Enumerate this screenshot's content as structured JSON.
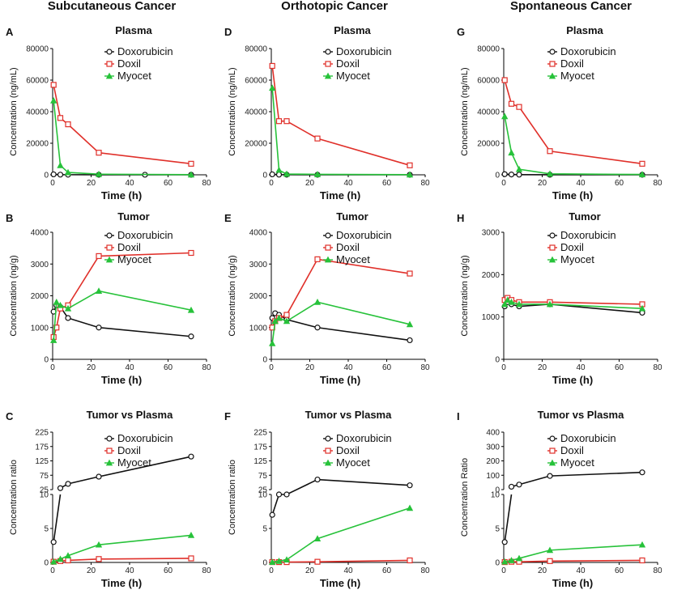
{
  "column_titles": [
    "Subcutaneous Cancer",
    "Orthotopic Cancer",
    "Spontaneous Cancer"
  ],
  "colors": {
    "Doxorubicin": "#111111",
    "Doxil": "#e0302a",
    "Myocet": "#27c23a"
  },
  "chart_data": [
    {
      "id": "A",
      "type": "line",
      "title": "Plasma",
      "xlabel": "Time (h)",
      "ylabel": "Concentration (ng/mL)",
      "xlim": [
        0,
        80
      ],
      "xticks": [
        "0",
        "20",
        "40",
        "60",
        "80"
      ],
      "ylim": [
        0,
        80000
      ],
      "yticks": [
        "0",
        "20000",
        "40000",
        "60000",
        "80000"
      ],
      "legend": [
        "Doxorubicin",
        "Doxil",
        "Myocet"
      ],
      "series": [
        {
          "name": "Doxorubicin",
          "x": [
            0.5,
            4,
            8,
            24,
            48,
            72
          ],
          "y": [
            300,
            100,
            60,
            30,
            20,
            10
          ]
        },
        {
          "name": "Doxil",
          "x": [
            0.5,
            4,
            8,
            24,
            72
          ],
          "y": [
            57000,
            36000,
            32000,
            14000,
            7000
          ]
        },
        {
          "name": "Myocet",
          "x": [
            0.5,
            4,
            8,
            24,
            72
          ],
          "y": [
            47000,
            6000,
            1500,
            400,
            100
          ]
        }
      ]
    },
    {
      "id": "D",
      "type": "line",
      "title": "Plasma",
      "xlabel": "Time (h)",
      "ylabel": "Concentration (ng/mL)",
      "xlim": [
        0,
        80
      ],
      "xticks": [
        "0",
        "20",
        "40",
        "60",
        "80"
      ],
      "ylim": [
        0,
        80000
      ],
      "yticks": [
        "0",
        "20000",
        "40000",
        "60000",
        "80000"
      ],
      "legend": [
        "Doxorubicin",
        "Doxil",
        "Myocet"
      ],
      "series": [
        {
          "name": "Doxorubicin",
          "x": [
            0.5,
            4,
            8,
            24,
            72
          ],
          "y": [
            300,
            100,
            60,
            30,
            10
          ]
        },
        {
          "name": "Doxil",
          "x": [
            0.5,
            4,
            8,
            24,
            72
          ],
          "y": [
            69000,
            34000,
            34000,
            23000,
            6000
          ]
        },
        {
          "name": "Myocet",
          "x": [
            0.5,
            4,
            8,
            24,
            72
          ],
          "y": [
            55000,
            3000,
            500,
            300,
            100
          ]
        }
      ]
    },
    {
      "id": "G",
      "type": "line",
      "title": "Plasma",
      "xlabel": "Time (h)",
      "ylabel": "Concentration (ng/mL)",
      "xlim": [
        0,
        80
      ],
      "xticks": [
        "0",
        "20",
        "40",
        "60",
        "80"
      ],
      "ylim": [
        0,
        80000
      ],
      "yticks": [
        "0",
        "20000",
        "40000",
        "60000",
        "80000"
      ],
      "legend": [
        "Doxorubicin",
        "Doxil",
        "Myocet"
      ],
      "series": [
        {
          "name": "Doxorubicin",
          "x": [
            0.5,
            4,
            8,
            24,
            72
          ],
          "y": [
            400,
            200,
            100,
            50,
            20
          ]
        },
        {
          "name": "Doxil",
          "x": [
            0.5,
            4,
            8,
            24,
            72
          ],
          "y": [
            60000,
            45000,
            43000,
            15000,
            7000
          ]
        },
        {
          "name": "Myocet",
          "x": [
            0.5,
            4,
            8,
            24,
            72
          ],
          "y": [
            37000,
            14000,
            3500,
            600,
            200
          ]
        }
      ]
    },
    {
      "id": "B",
      "type": "line",
      "title": "Tumor",
      "xlabel": "Time (h)",
      "ylabel": "Concentration (ng/g)",
      "xlim": [
        0,
        80
      ],
      "xticks": [
        "0",
        "20",
        "40",
        "60",
        "80"
      ],
      "ylim": [
        0,
        4000
      ],
      "yticks": [
        "0",
        "1000",
        "2000",
        "3000",
        "4000"
      ],
      "legend": [
        "Doxorubicin",
        "Doxil",
        "Myocet"
      ],
      "series": [
        {
          "name": "Doxorubicin",
          "x": [
            0.5,
            2,
            4,
            8,
            24,
            72
          ],
          "y": [
            1500,
            1700,
            1650,
            1300,
            1000,
            720
          ]
        },
        {
          "name": "Doxil",
          "x": [
            0.5,
            2,
            4,
            8,
            24,
            72
          ],
          "y": [
            700,
            1000,
            1600,
            1700,
            3250,
            3350
          ]
        },
        {
          "name": "Myocet",
          "x": [
            0.5,
            2,
            4,
            8,
            24,
            72
          ],
          "y": [
            600,
            1800,
            1700,
            1600,
            2150,
            1550
          ]
        }
      ]
    },
    {
      "id": "E",
      "type": "line",
      "title": "Tumor",
      "xlabel": "Time (h)",
      "ylabel": "Concentration (ng/g)",
      "xlim": [
        0,
        80
      ],
      "xticks": [
        "0",
        "20",
        "40",
        "60",
        "80"
      ],
      "ylim": [
        0,
        4000
      ],
      "yticks": [
        "0",
        "1000",
        "2000",
        "3000",
        "4000"
      ],
      "legend": [
        "Doxorubicin",
        "Doxil",
        "Myocet"
      ],
      "series": [
        {
          "name": "Doxorubicin",
          "x": [
            0.5,
            2,
            4,
            8,
            24,
            72
          ],
          "y": [
            1300,
            1450,
            1400,
            1250,
            1000,
            600
          ]
        },
        {
          "name": "Doxil",
          "x": [
            0.5,
            2,
            4,
            8,
            24,
            72
          ],
          "y": [
            1000,
            1200,
            1300,
            1400,
            3150,
            2700
          ]
        },
        {
          "name": "Myocet",
          "x": [
            0.5,
            2,
            4,
            8,
            24,
            72
          ],
          "y": [
            500,
            1200,
            1300,
            1200,
            1800,
            1100
          ]
        }
      ]
    },
    {
      "id": "H",
      "type": "line",
      "title": "Tumor",
      "xlabel": "Time (h)",
      "ylabel": "Concentration (ng/g)",
      "xlim": [
        0,
        80
      ],
      "xticks": [
        "0",
        "20",
        "40",
        "60",
        "80"
      ],
      "ylim": [
        0,
        3000
      ],
      "yticks": [
        "0",
        "1000",
        "2000",
        "3000"
      ],
      "legend": [
        "Doxorubicin",
        "Doxil",
        "Myocet"
      ],
      "series": [
        {
          "name": "Doxorubicin",
          "x": [
            0.5,
            2,
            4,
            8,
            24,
            72
          ],
          "y": [
            1250,
            1350,
            1300,
            1250,
            1300,
            1100
          ]
        },
        {
          "name": "Doxil",
          "x": [
            0.5,
            2,
            4,
            8,
            24,
            72
          ],
          "y": [
            1400,
            1450,
            1400,
            1350,
            1350,
            1300
          ]
        },
        {
          "name": "Myocet",
          "x": [
            0.5,
            2,
            4,
            8,
            24,
            72
          ],
          "y": [
            1300,
            1400,
            1350,
            1300,
            1300,
            1200
          ]
        }
      ]
    },
    {
      "id": "C",
      "type": "line",
      "title": "Tumor vs Plasma",
      "xlabel": "Time (h)",
      "ylabel": "Concentration ratio",
      "xlim": [
        0,
        80
      ],
      "xticks": [
        "0",
        "20",
        "40",
        "60",
        "80"
      ],
      "upper": {
        "ylim": [
          25,
          225
        ],
        "yticks": [
          "25",
          "75",
          "125",
          "175",
          "225"
        ]
      },
      "lower": {
        "ylim": [
          0,
          10
        ],
        "yticks": [
          "0",
          "5",
          "10"
        ]
      },
      "legend": [
        "Doxorubicin",
        "Doxil",
        "Myocet"
      ],
      "series": [
        {
          "name": "Doxorubicin",
          "x": [
            0.5,
            4,
            8,
            24,
            72
          ],
          "y": [
            3,
            30,
            45,
            70,
            140
          ]
        },
        {
          "name": "Doxil",
          "x": [
            0.5,
            4,
            8,
            24,
            72
          ],
          "y": [
            0.1,
            0.2,
            0.3,
            0.5,
            0.6
          ]
        },
        {
          "name": "Myocet",
          "x": [
            0.5,
            4,
            8,
            24,
            72
          ],
          "y": [
            0.1,
            0.5,
            1,
            2.6,
            4
          ]
        }
      ]
    },
    {
      "id": "F",
      "type": "line",
      "title": "Tumor vs Plasma",
      "xlabel": "Time (h)",
      "ylabel": "Concentration ratio",
      "xlim": [
        0,
        80
      ],
      "xticks": [
        "0",
        "20",
        "40",
        "60",
        "80"
      ],
      "upper": {
        "ylim": [
          25,
          225
        ],
        "yticks": [
          "25",
          "75",
          "125",
          "175",
          "225"
        ]
      },
      "lower": {
        "ylim": [
          0,
          10
        ],
        "yticks": [
          "0",
          "5",
          "10"
        ]
      },
      "legend": [
        "Doxorubicin",
        "Doxil",
        "Myocet"
      ],
      "series": [
        {
          "name": "Doxorubicin",
          "x": [
            0.5,
            4,
            8,
            24,
            72
          ],
          "y": [
            7,
            12,
            18,
            60,
            40
          ]
        },
        {
          "name": "Doxil",
          "x": [
            0.5,
            4,
            8,
            24,
            72
          ],
          "y": [
            0.05,
            0.05,
            0.05,
            0.1,
            0.3
          ]
        },
        {
          "name": "Myocet",
          "x": [
            0.5,
            4,
            8,
            24,
            72
          ],
          "y": [
            0.05,
            0.2,
            0.4,
            3.5,
            8
          ]
        }
      ]
    },
    {
      "id": "I",
      "type": "line",
      "title": "Tumor vs Plasma",
      "xlabel": "Time (h)",
      "ylabel": "Concentration Ratio",
      "xlim": [
        0,
        80
      ],
      "xticks": [
        "0",
        "20",
        "40",
        "60",
        "80"
      ],
      "upper": {
        "ylim": [
          0,
          400
        ],
        "yticks": [
          "0",
          "100",
          "200",
          "300",
          "400"
        ]
      },
      "lower": {
        "ylim": [
          0,
          10
        ],
        "yticks": [
          "0",
          "5",
          "10"
        ]
      },
      "legend": [
        "Doxorubicin",
        "Doxil",
        "Myocet"
      ],
      "series": [
        {
          "name": "Doxorubicin",
          "x": [
            0.5,
            4,
            8,
            24,
            72
          ],
          "y": [
            3,
            20,
            35,
            95,
            120
          ]
        },
        {
          "name": "Doxil",
          "x": [
            0.5,
            4,
            8,
            24,
            72
          ],
          "y": [
            0.05,
            0.1,
            0.1,
            0.2,
            0.3
          ]
        },
        {
          "name": "Myocet",
          "x": [
            0.5,
            4,
            8,
            24,
            72
          ],
          "y": [
            0.1,
            0.3,
            0.6,
            1.8,
            2.6
          ]
        }
      ]
    }
  ]
}
